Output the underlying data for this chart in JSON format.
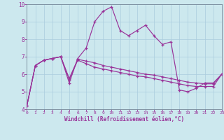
{
  "bg_color": "#cce8ee",
  "line_color": "#993399",
  "grid_color": "#aaccdd",
  "hours": [
    0,
    1,
    2,
    3,
    4,
    5,
    6,
    7,
    8,
    9,
    10,
    11,
    12,
    13,
    14,
    15,
    16,
    17,
    18,
    19,
    20,
    21,
    22,
    23
  ],
  "windchill": [
    4.2,
    6.5,
    6.8,
    6.9,
    7.0,
    5.5,
    6.9,
    7.5,
    9.0,
    9.6,
    9.85,
    8.5,
    8.2,
    8.5,
    8.8,
    8.2,
    7.7,
    7.85,
    5.1,
    5.0,
    5.2,
    5.5,
    5.5,
    6.0
  ],
  "line2": [
    4.2,
    6.5,
    6.8,
    6.9,
    7.0,
    5.75,
    6.85,
    6.75,
    6.65,
    6.5,
    6.4,
    6.3,
    6.2,
    6.1,
    6.0,
    5.95,
    5.85,
    5.75,
    5.65,
    5.55,
    5.5,
    5.45,
    5.45,
    6.0
  ],
  "line3": [
    4.2,
    6.5,
    6.8,
    6.9,
    7.0,
    5.7,
    6.8,
    6.6,
    6.4,
    6.3,
    6.2,
    6.1,
    6.0,
    5.9,
    5.85,
    5.75,
    5.65,
    5.55,
    5.45,
    5.35,
    5.3,
    5.3,
    5.3,
    6.0
  ],
  "ylim": [
    4,
    10
  ],
  "xlim_min": 0,
  "xlim_max": 23,
  "xlabel": "Windchill (Refroidissement éolien,°C)"
}
